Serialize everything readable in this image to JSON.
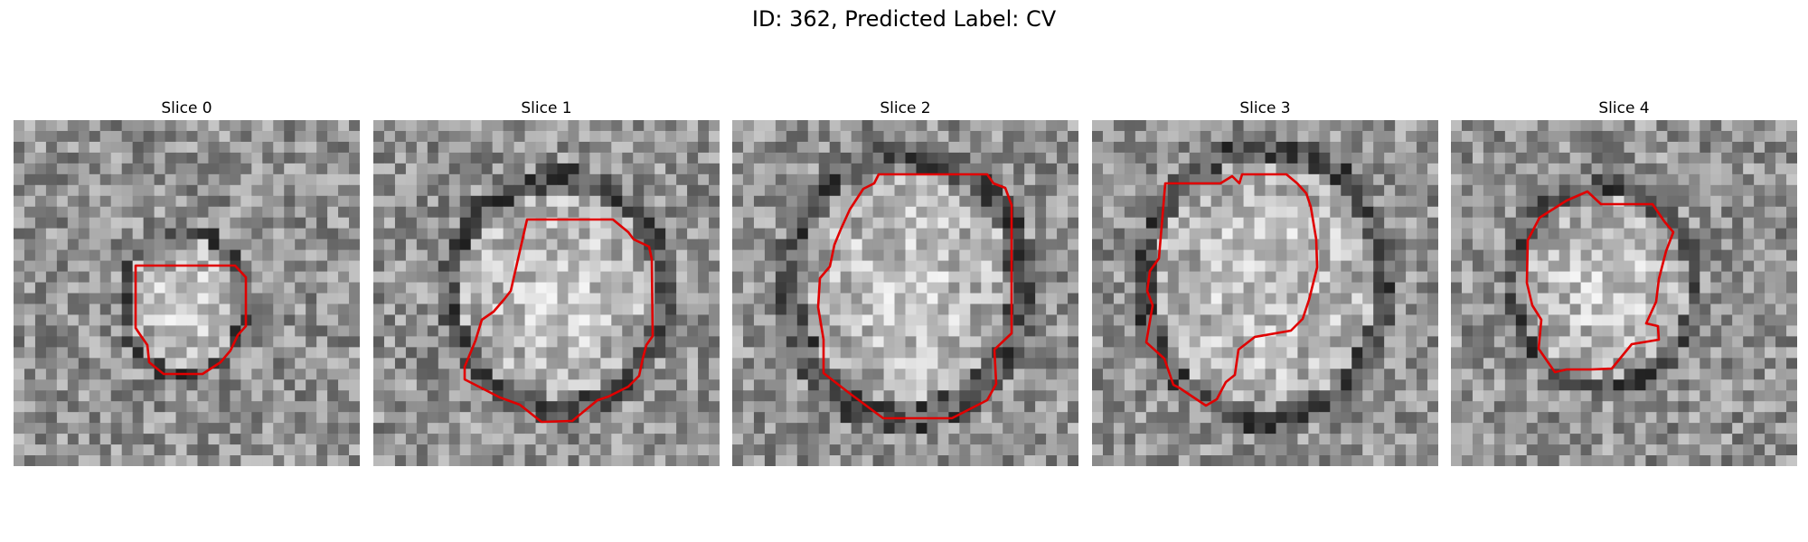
{
  "figure": {
    "title": "ID: 362, Predicted Label: CV",
    "panels": [
      {
        "title": "Slice 0",
        "icon": "grayscale-micrograph-slice",
        "contour_color": "#e00000"
      },
      {
        "title": "Slice 1",
        "icon": "grayscale-micrograph-slice",
        "contour_color": "#e00000"
      },
      {
        "title": "Slice 2",
        "icon": "grayscale-micrograph-slice",
        "contour_color": "#e00000"
      },
      {
        "title": "Slice 3",
        "icon": "grayscale-micrograph-slice",
        "contour_color": "#e00000"
      },
      {
        "title": "Slice 4",
        "icon": "grayscale-micrograph-slice",
        "contour_color": "#e00000"
      }
    ]
  }
}
